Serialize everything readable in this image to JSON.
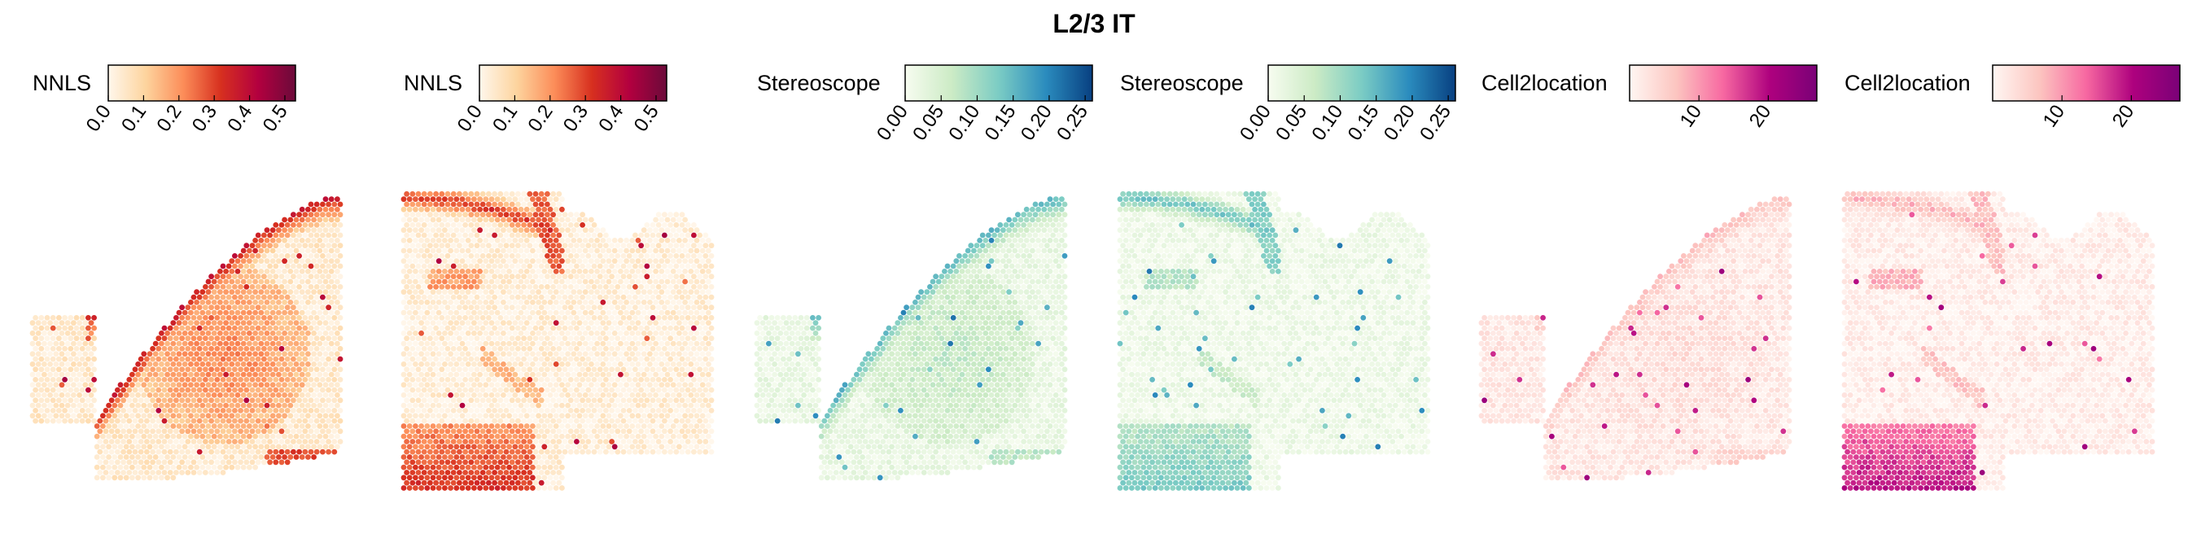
{
  "figure": {
    "title": "L2/3 IT"
  },
  "chart_data": [
    {
      "type": "heatmap",
      "method_label": "NNLS",
      "section": "sagittal-left",
      "colormap": "OrRd",
      "colors": [
        "#fff7ec",
        "#fdd49e",
        "#fc8d59",
        "#d7301f",
        "#b3003f",
        "#6b0a3a"
      ],
      "ticks": [
        0.0,
        0.1,
        0.2,
        0.3,
        0.4,
        0.5
      ],
      "tick_labels": [
        "0.0",
        "0.1",
        "0.2",
        "0.3",
        "0.4",
        "0.5"
      ],
      "vlim": [
        0,
        0.53
      ],
      "peak_regions": [
        "cortical layer band",
        "posterior-inferior cortex"
      ]
    },
    {
      "type": "heatmap",
      "method_label": "NNLS",
      "section": "sagittal-right",
      "colormap": "OrRd",
      "colors": [
        "#fff7ec",
        "#fdd49e",
        "#fc8d59",
        "#d7301f",
        "#b3003f",
        "#6b0a3a"
      ],
      "ticks": [
        0.0,
        0.1,
        0.2,
        0.3,
        0.4,
        0.5
      ],
      "tick_labels": [
        "0.0",
        "0.1",
        "0.2",
        "0.3",
        "0.4",
        "0.5"
      ],
      "vlim": [
        0,
        0.53
      ],
      "peak_regions": [
        "cortical layer band",
        "ventral cortex"
      ]
    },
    {
      "type": "heatmap",
      "method_label": "Stereoscope",
      "section": "sagittal-left",
      "colormap": "GnBu",
      "colors": [
        "#f7fcf0",
        "#ccebc5",
        "#7bccc4",
        "#2b8cbe",
        "#084081"
      ],
      "ticks": [
        0.0,
        0.05,
        0.1,
        0.15,
        0.2,
        0.25
      ],
      "tick_labels": [
        "0.00",
        "0.05",
        "0.10",
        "0.15",
        "0.20",
        "0.25"
      ],
      "vlim": [
        0,
        0.26
      ],
      "peak_regions": [
        "cortical layer band"
      ]
    },
    {
      "type": "heatmap",
      "method_label": "Stereoscope",
      "section": "sagittal-right",
      "colormap": "GnBu",
      "colors": [
        "#f7fcf0",
        "#ccebc5",
        "#7bccc4",
        "#2b8cbe",
        "#084081"
      ],
      "ticks": [
        0.0,
        0.05,
        0.1,
        0.15,
        0.2,
        0.25
      ],
      "tick_labels": [
        "0.00",
        "0.05",
        "0.10",
        "0.15",
        "0.20",
        "0.25"
      ],
      "vlim": [
        0,
        0.26
      ],
      "peak_regions": [
        "cortical layer band",
        "ventral cortex"
      ]
    },
    {
      "type": "heatmap",
      "method_label": "Cell2location",
      "section": "sagittal-left",
      "colormap": "RdPu",
      "colors": [
        "#fff7f3",
        "#fcc5c0",
        "#f768a1",
        "#ae017e",
        "#7a0177"
      ],
      "ticks": [
        10,
        20
      ],
      "tick_labels": [
        "10",
        "20"
      ],
      "vlim": [
        0,
        27
      ],
      "peak_regions": [
        "cortical layer band"
      ]
    },
    {
      "type": "heatmap",
      "method_label": "Cell2location",
      "section": "sagittal-right",
      "colormap": "RdPu",
      "colors": [
        "#fff7f3",
        "#fcc5c0",
        "#f768a1",
        "#ae017e",
        "#7a0177"
      ],
      "ticks": [
        10,
        20
      ],
      "tick_labels": [
        "10",
        "20"
      ],
      "vlim": [
        0,
        27
      ],
      "peak_regions": [
        "ventral cortex",
        "cortical layer band"
      ]
    }
  ]
}
